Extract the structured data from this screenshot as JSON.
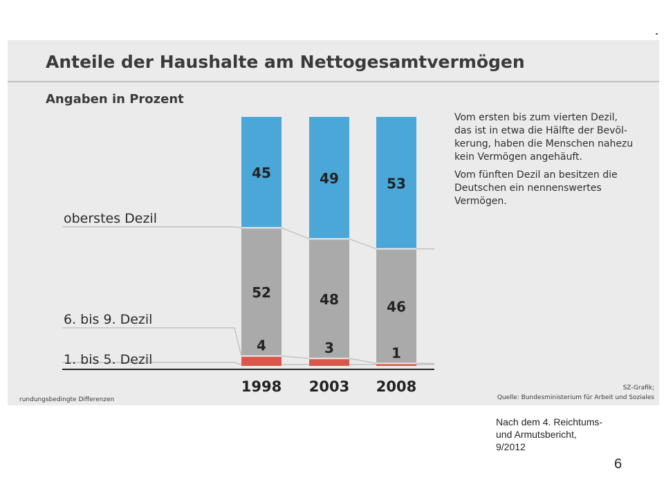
{
  "slide": {
    "caption_lines": [
      "Nach dem 4. Reichtums-",
      "und Armutsbericht,",
      "9/2012"
    ],
    "page_number": "6"
  },
  "figure": {
    "title": "Anteile der Haushalte am Nettogesamtvermögen",
    "subtitle": "Angaben in Prozent",
    "note_paragraph_1": [
      "Vom ersten bis zum vierten Dezil,",
      "das ist in etwa die Hälfte der Bevöl-",
      "kerung, haben die Menschen nahezu",
      "kein Vermögen angehäuft."
    ],
    "note_paragraph_2": [
      "Vom fünften Dezil an besitzen die",
      "Deutschen ein nennenswertes",
      "Vermögen."
    ],
    "footnote": "rundungsbedingte Differenzen",
    "credit_line_1": "SZ-Grafik;",
    "credit_line_2": "Quelle: Bundesministerium für Arbeit und Soziales",
    "colors": {
      "panel": "#ebebeb",
      "top": "#4aa7d8",
      "middle": "#aaaaaa",
      "bottom": "#d9574a",
      "rule": "#c2c2c2",
      "baseline": "#222222"
    }
  },
  "chart_data": {
    "type": "bar",
    "stacked": true,
    "title": "Anteile der Haushalte am Nettogesamtvermögen",
    "subtitle": "Angaben in Prozent",
    "categories": [
      "1998",
      "2003",
      "2008"
    ],
    "series": [
      {
        "name": "1. bis 5. Dezil",
        "values": [
          4,
          3,
          1
        ],
        "color": "#d9574a"
      },
      {
        "name": "6. bis 9. Dezil",
        "values": [
          52,
          48,
          46
        ],
        "color": "#aaaaaa"
      },
      {
        "name": "oberstes Dezil",
        "values": [
          45,
          49,
          53
        ],
        "color": "#4aa7d8"
      }
    ],
    "data_labels": {
      "1. bis 5. Dezil": [
        "4",
        "3",
        "1"
      ],
      "6. bis 9. Dezil": [
        "52",
        "48",
        "46"
      ],
      "oberstes Dezil": [
        "45",
        "49",
        "53"
      ]
    },
    "legend": "labels on left side",
    "grid": false
  }
}
